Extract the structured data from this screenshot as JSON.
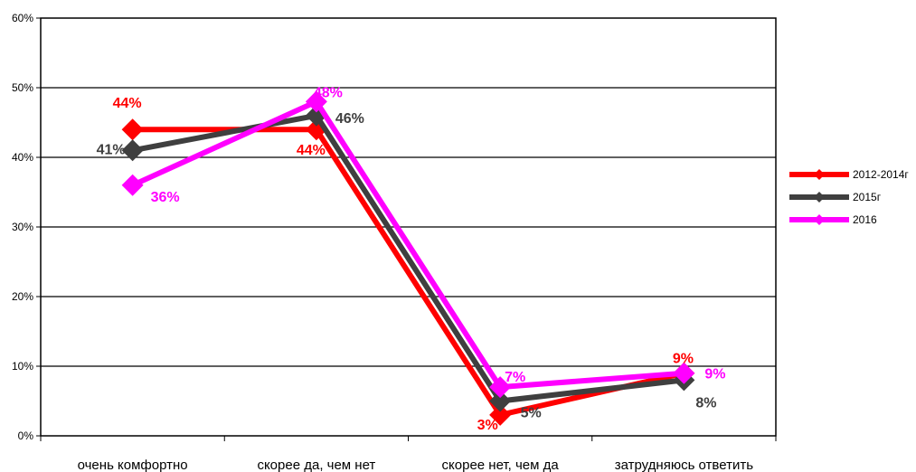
{
  "chart_data": {
    "type": "line",
    "categories": [
      "очень комфортно",
      "скорее да, чем нет",
      "скорее нет, чем да",
      "затрудняюсь ответить"
    ],
    "ylim": [
      0,
      60
    ],
    "yticks": [
      0,
      10,
      20,
      30,
      40,
      50,
      60
    ],
    "ytick_labels": [
      "0%",
      "10%",
      "20%",
      "30%",
      "40%",
      "50%",
      "60%"
    ],
    "grid": "horizontal",
    "legend": "right",
    "series": [
      {
        "name": "2012-2014г",
        "color": "#ff0000",
        "values": [
          44,
          44,
          3,
          9
        ],
        "labels": [
          "44%",
          "44%",
          "3%",
          "9%"
        ]
      },
      {
        "name": "2015г",
        "color": "#3f3f3f",
        "values": [
          41,
          46,
          5,
          8
        ],
        "labels": [
          "41%",
          "46%",
          "5%",
          "8%"
        ]
      },
      {
        "name": "2016",
        "color": "#ff00ff",
        "values": [
          36,
          48,
          7,
          9
        ],
        "labels": [
          "36%",
          "48%",
          "7%",
          "9%"
        ]
      }
    ]
  }
}
